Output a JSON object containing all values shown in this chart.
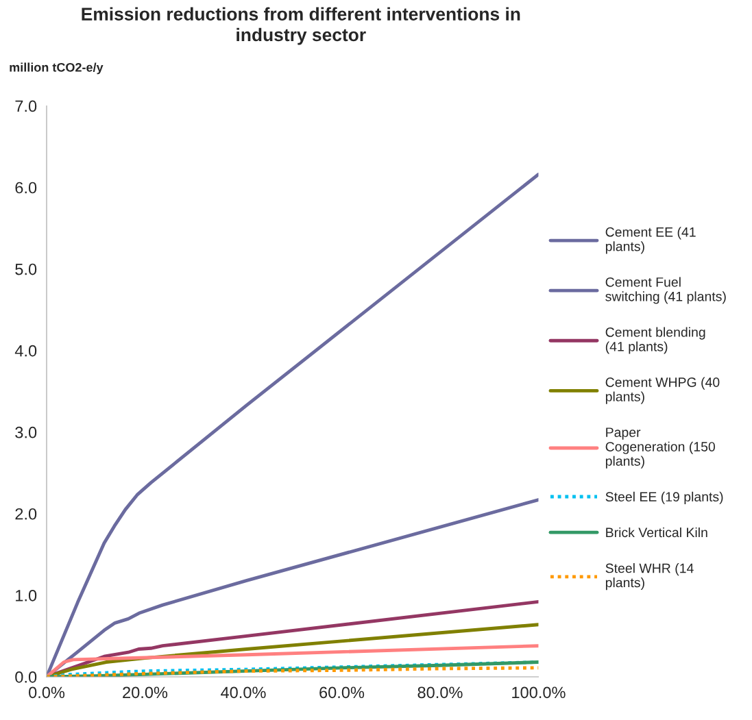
{
  "chart_data": {
    "type": "line",
    "title": "Emission reductions from different interventions in\nindustry sector",
    "ylabel": "million tCO2-e/y",
    "xlim": [
      0,
      100
    ],
    "xticks": [
      {
        "value": 0,
        "label": "0.0%"
      },
      {
        "value": 20,
        "label": "20.0%"
      },
      {
        "value": 40,
        "label": "40.0%"
      },
      {
        "value": 60,
        "label": "60.0%"
      },
      {
        "value": 80,
        "label": "80.0%"
      },
      {
        "value": 100,
        "label": "100.0%"
      }
    ],
    "ylim": [
      0,
      7
    ],
    "yticks": [
      {
        "value": 0,
        "label": "0.0"
      },
      {
        "value": 1,
        "label": "1.0"
      },
      {
        "value": 2,
        "label": "2.0"
      },
      {
        "value": 3,
        "label": "3.0"
      },
      {
        "value": 4,
        "label": "4.0"
      },
      {
        "value": 5,
        "label": "5.0"
      },
      {
        "value": 6,
        "label": "6.0"
      },
      {
        "value": 7,
        "label": "7.0"
      }
    ],
    "grid": false,
    "legend": "right",
    "marker": "none",
    "series": [
      {
        "name": "Cement EE (41\nplants)",
        "color": "#6b6b9f",
        "line_style": "solid",
        "x": [
          0,
          6.3,
          11.7,
          13.8,
          16,
          18.4,
          21.2,
          40.7,
          100
        ],
        "values": [
          0,
          0.91,
          1.64,
          1.85,
          2.05,
          2.23,
          2.38,
          3.33,
          6.16
        ]
      },
      {
        "name": "Cement Fuel\nswitching (41 plants)",
        "color": "#6b6b9f",
        "line_style": "solid",
        "x": [
          0,
          6.6,
          11.7,
          13.9,
          16.6,
          18.8,
          23.6,
          40.7,
          100
        ],
        "values": [
          0,
          0.32,
          0.57,
          0.66,
          0.71,
          0.78,
          0.88,
          1.18,
          2.17
        ]
      },
      {
        "name": "Cement blending\n(41 plants)",
        "color": "#943763",
        "line_style": "solid",
        "x": [
          0,
          11.7,
          16.6,
          18.7,
          21.2,
          23.6,
          40.7,
          100
        ],
        "values": [
          0,
          0.25,
          0.3,
          0.34,
          0.35,
          0.38,
          0.5,
          0.92
        ]
      },
      {
        "name": "Cement WHPG (40\nplants)",
        "color": "#808000",
        "line_style": "solid",
        "x": [
          0,
          5,
          12.1,
          20,
          40.7,
          100
        ],
        "values": [
          0,
          0.09,
          0.18,
          0.23,
          0.34,
          0.64
        ]
      },
      {
        "name": "Paper\nCogeneration (150\nplants)",
        "color": "#ff8080",
        "line_style": "solid",
        "x": [
          0,
          3.5,
          5.4,
          40.7,
          100
        ],
        "values": [
          0,
          0.18,
          0.21,
          0.27,
          0.38
        ]
      },
      {
        "name": "Steel EE (19 plants)",
        "color": "#00c0f0",
        "line_style": "dotted",
        "x": [
          0,
          5,
          20,
          40,
          60,
          80,
          100
        ],
        "values": [
          0,
          0.03,
          0.07,
          0.09,
          0.12,
          0.15,
          0.18
        ]
      },
      {
        "name": "Brick Vertical Kiln",
        "color": "#339966",
        "line_style": "solid",
        "x": [
          0,
          10,
          20,
          40,
          60,
          80,
          100
        ],
        "values": [
          0,
          0.01,
          0.03,
          0.07,
          0.11,
          0.14,
          0.18
        ]
      },
      {
        "name": "Steel WHR (14\nplants)",
        "color": "#ff9900",
        "line_style": "dotted",
        "x": [
          0,
          20,
          40,
          60,
          80,
          100
        ],
        "values": [
          0,
          0.04,
          0.07,
          0.08,
          0.1,
          0.11
        ]
      }
    ]
  }
}
